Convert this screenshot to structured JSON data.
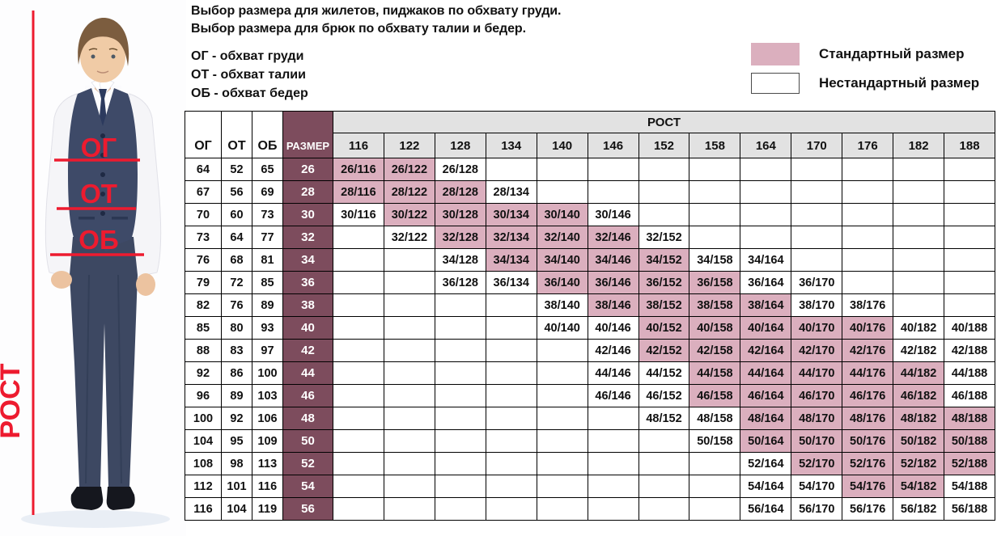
{
  "intro": {
    "line1": "Выбор размера для жилетов, пиджаков по обхвату груди.",
    "line2": "Выбор размера для брюк по обхвату талии и бедер.",
    "abbr": [
      "ОГ - обхват груди",
      "ОТ - обхват талии",
      "ОБ - обхват бедер"
    ]
  },
  "legend": {
    "standard_label": "Стандартный размер",
    "nonstandard_label": "Нестандартный размер",
    "standard_color": "#dbafbe",
    "nonstandard_color": "#ffffff"
  },
  "figure": {
    "chest_label": "ОГ",
    "waist_label": "ОТ",
    "hips_label": "ОБ",
    "height_label": "РОСТ",
    "accent_color": "#ed1b2f"
  },
  "chart_data": {
    "type": "table",
    "columns": {
      "og": "ОГ",
      "ot": "ОТ",
      "ob": "ОБ",
      "size": "РАЗМЕР",
      "height_group": "РОСТ"
    },
    "heights": [
      "116",
      "122",
      "128",
      "134",
      "140",
      "146",
      "152",
      "158",
      "164",
      "170",
      "176",
      "182",
      "188"
    ],
    "colors": {
      "standard_cell": "#dbafbe",
      "size_column": "#7d4c5d",
      "header_bg": "#e2e2e2"
    },
    "rows": [
      {
        "og": "64",
        "ot": "52",
        "ob": "65",
        "size": "26",
        "cells": [
          {
            "h": "116",
            "label": "26/116",
            "standard": true
          },
          {
            "h": "122",
            "label": "26/122",
            "standard": true
          },
          {
            "h": "128",
            "label": "26/128",
            "standard": false
          }
        ]
      },
      {
        "og": "67",
        "ot": "56",
        "ob": "69",
        "size": "28",
        "cells": [
          {
            "h": "116",
            "label": "28/116",
            "standard": true
          },
          {
            "h": "122",
            "label": "28/122",
            "standard": true
          },
          {
            "h": "128",
            "label": "28/128",
            "standard": true
          },
          {
            "h": "134",
            "label": "28/134",
            "standard": false
          }
        ]
      },
      {
        "og": "70",
        "ot": "60",
        "ob": "73",
        "size": "30",
        "cells": [
          {
            "h": "116",
            "label": "30/116",
            "standard": false
          },
          {
            "h": "122",
            "label": "30/122",
            "standard": true
          },
          {
            "h": "128",
            "label": "30/128",
            "standard": true
          },
          {
            "h": "134",
            "label": "30/134",
            "standard": true
          },
          {
            "h": "140",
            "label": "30/140",
            "standard": true
          },
          {
            "h": "146",
            "label": "30/146",
            "standard": false
          }
        ]
      },
      {
        "og": "73",
        "ot": "64",
        "ob": "77",
        "size": "32",
        "cells": [
          {
            "h": "122",
            "label": "32/122",
            "standard": false
          },
          {
            "h": "128",
            "label": "32/128",
            "standard": true
          },
          {
            "h": "134",
            "label": "32/134",
            "standard": true
          },
          {
            "h": "140",
            "label": "32/140",
            "standard": true
          },
          {
            "h": "146",
            "label": "32/146",
            "standard": true
          },
          {
            "h": "152",
            "label": "32/152",
            "standard": false
          }
        ]
      },
      {
        "og": "76",
        "ot": "68",
        "ob": "81",
        "size": "34",
        "cells": [
          {
            "h": "128",
            "label": "34/128",
            "standard": false
          },
          {
            "h": "134",
            "label": "34/134",
            "standard": true
          },
          {
            "h": "140",
            "label": "34/140",
            "standard": true
          },
          {
            "h": "146",
            "label": "34/146",
            "standard": true
          },
          {
            "h": "152",
            "label": "34/152",
            "standard": true
          },
          {
            "h": "158",
            "label": "34/158",
            "standard": false
          },
          {
            "h": "164",
            "label": "34/164",
            "standard": false
          }
        ]
      },
      {
        "og": "79",
        "ot": "72",
        "ob": "85",
        "size": "36",
        "cells": [
          {
            "h": "128",
            "label": "36/128",
            "standard": false
          },
          {
            "h": "134",
            "label": "36/134",
            "standard": false
          },
          {
            "h": "140",
            "label": "36/140",
            "standard": true
          },
          {
            "h": "146",
            "label": "36/146",
            "standard": true
          },
          {
            "h": "152",
            "label": "36/152",
            "standard": true
          },
          {
            "h": "158",
            "label": "36/158",
            "standard": true
          },
          {
            "h": "164",
            "label": "36/164",
            "standard": false
          },
          {
            "h": "170",
            "label": "36/170",
            "standard": false
          }
        ]
      },
      {
        "og": "82",
        "ot": "76",
        "ob": "89",
        "size": "38",
        "cells": [
          {
            "h": "140",
            "label": "38/140",
            "standard": false
          },
          {
            "h": "146",
            "label": "38/146",
            "standard": true
          },
          {
            "h": "152",
            "label": "38/152",
            "standard": true
          },
          {
            "h": "158",
            "label": "38/158",
            "standard": true
          },
          {
            "h": "164",
            "label": "38/164",
            "standard": true
          },
          {
            "h": "170",
            "label": "38/170",
            "standard": false
          },
          {
            "h": "176",
            "label": "38/176",
            "standard": false
          }
        ]
      },
      {
        "og": "85",
        "ot": "80",
        "ob": "93",
        "size": "40",
        "cells": [
          {
            "h": "140",
            "label": "40/140",
            "standard": false
          },
          {
            "h": "146",
            "label": "40/146",
            "standard": false
          },
          {
            "h": "152",
            "label": "40/152",
            "standard": true
          },
          {
            "h": "158",
            "label": "40/158",
            "standard": true
          },
          {
            "h": "164",
            "label": "40/164",
            "standard": true
          },
          {
            "h": "170",
            "label": "40/170",
            "standard": true
          },
          {
            "h": "176",
            "label": "40/176",
            "standard": true
          },
          {
            "h": "182",
            "label": "40/182",
            "standard": false
          },
          {
            "h": "188",
            "label": "40/188",
            "standard": false
          }
        ]
      },
      {
        "og": "88",
        "ot": "83",
        "ob": "97",
        "size": "42",
        "cells": [
          {
            "h": "146",
            "label": "42/146",
            "standard": false
          },
          {
            "h": "152",
            "label": "42/152",
            "standard": true
          },
          {
            "h": "158",
            "label": "42/158",
            "standard": true
          },
          {
            "h": "164",
            "label": "42/164",
            "standard": true
          },
          {
            "h": "170",
            "label": "42/170",
            "standard": true
          },
          {
            "h": "176",
            "label": "42/176",
            "standard": true
          },
          {
            "h": "182",
            "label": "42/182",
            "standard": false
          },
          {
            "h": "188",
            "label": "42/188",
            "standard": false
          }
        ]
      },
      {
        "og": "92",
        "ot": "86",
        "ob": "100",
        "size": "44",
        "cells": [
          {
            "h": "146",
            "label": "44/146",
            "standard": false
          },
          {
            "h": "152",
            "label": "44/152",
            "standard": false
          },
          {
            "h": "158",
            "label": "44/158",
            "standard": true
          },
          {
            "h": "164",
            "label": "44/164",
            "standard": true
          },
          {
            "h": "170",
            "label": "44/170",
            "standard": true
          },
          {
            "h": "176",
            "label": "44/176",
            "standard": true
          },
          {
            "h": "182",
            "label": "44/182",
            "standard": true
          },
          {
            "h": "188",
            "label": "44/188",
            "standard": false
          }
        ]
      },
      {
        "og": "96",
        "ot": "89",
        "ob": "103",
        "size": "46",
        "cells": [
          {
            "h": "146",
            "label": "46/146",
            "standard": false
          },
          {
            "h": "152",
            "label": "46/152",
            "standard": false
          },
          {
            "h": "158",
            "label": "46/158",
            "standard": true
          },
          {
            "h": "164",
            "label": "46/164",
            "standard": true
          },
          {
            "h": "170",
            "label": "46/170",
            "standard": true
          },
          {
            "h": "176",
            "label": "46/176",
            "standard": true
          },
          {
            "h": "182",
            "label": "46/182",
            "standard": true
          },
          {
            "h": "188",
            "label": "46/188",
            "standard": false
          }
        ]
      },
      {
        "og": "100",
        "ot": "92",
        "ob": "106",
        "size": "48",
        "cells": [
          {
            "h": "152",
            "label": "48/152",
            "standard": false
          },
          {
            "h": "158",
            "label": "48/158",
            "standard": false
          },
          {
            "h": "164",
            "label": "48/164",
            "standard": true
          },
          {
            "h": "170",
            "label": "48/170",
            "standard": true
          },
          {
            "h": "176",
            "label": "48/176",
            "standard": true
          },
          {
            "h": "182",
            "label": "48/182",
            "standard": true
          },
          {
            "h": "188",
            "label": "48/188",
            "standard": true
          }
        ]
      },
      {
        "og": "104",
        "ot": "95",
        "ob": "109",
        "size": "50",
        "cells": [
          {
            "h": "158",
            "label": "50/158",
            "standard": false
          },
          {
            "h": "164",
            "label": "50/164",
            "standard": true
          },
          {
            "h": "170",
            "label": "50/170",
            "standard": true
          },
          {
            "h": "176",
            "label": "50/176",
            "standard": true
          },
          {
            "h": "182",
            "label": "50/182",
            "standard": true
          },
          {
            "h": "188",
            "label": "50/188",
            "standard": true
          }
        ]
      },
      {
        "og": "108",
        "ot": "98",
        "ob": "113",
        "size": "52",
        "cells": [
          {
            "h": "164",
            "label": "52/164",
            "standard": false
          },
          {
            "h": "170",
            "label": "52/170",
            "standard": true
          },
          {
            "h": "176",
            "label": "52/176",
            "standard": true
          },
          {
            "h": "182",
            "label": "52/182",
            "standard": true
          },
          {
            "h": "188",
            "label": "52/188",
            "standard": true
          }
        ]
      },
      {
        "og": "112",
        "ot": "101",
        "ob": "116",
        "size": "54",
        "cells": [
          {
            "h": "164",
            "label": "54/164",
            "standard": false
          },
          {
            "h": "170",
            "label": "54/170",
            "standard": false
          },
          {
            "h": "176",
            "label": "54/176",
            "standard": true
          },
          {
            "h": "182",
            "label": "54/182",
            "standard": true
          },
          {
            "h": "188",
            "label": "54/188",
            "standard": false
          }
        ]
      },
      {
        "og": "116",
        "ot": "104",
        "ob": "119",
        "size": "56",
        "cells": [
          {
            "h": "164",
            "label": "56/164",
            "standard": false
          },
          {
            "h": "170",
            "label": "56/170",
            "standard": false
          },
          {
            "h": "176",
            "label": "56/176",
            "standard": false
          },
          {
            "h": "182",
            "label": "56/182",
            "standard": false
          },
          {
            "h": "188",
            "label": "56/188",
            "standard": false
          }
        ]
      }
    ]
  }
}
